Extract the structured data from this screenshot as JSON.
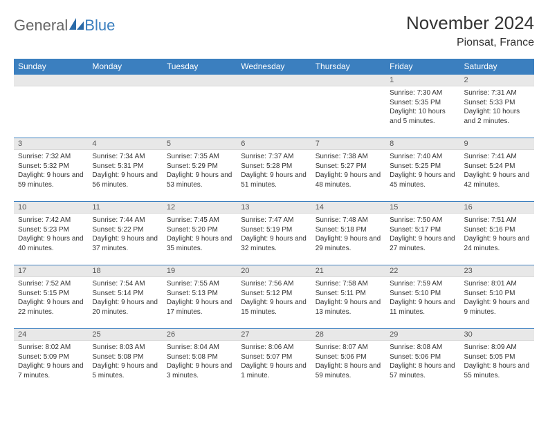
{
  "logo": {
    "part1": "General",
    "part2": "Blue"
  },
  "title": "November 2024",
  "location": "Pionsat, France",
  "header_color": "#3b7fbf",
  "daynum_bg": "#e8e8e8",
  "daynames": [
    "Sunday",
    "Monday",
    "Tuesday",
    "Wednesday",
    "Thursday",
    "Friday",
    "Saturday"
  ],
  "weeks": [
    [
      null,
      null,
      null,
      null,
      null,
      {
        "n": "1",
        "sr": "7:30 AM",
        "ss": "5:35 PM",
        "dl": "10 hours and 5 minutes."
      },
      {
        "n": "2",
        "sr": "7:31 AM",
        "ss": "5:33 PM",
        "dl": "10 hours and 2 minutes."
      }
    ],
    [
      {
        "n": "3",
        "sr": "7:32 AM",
        "ss": "5:32 PM",
        "dl": "9 hours and 59 minutes."
      },
      {
        "n": "4",
        "sr": "7:34 AM",
        "ss": "5:31 PM",
        "dl": "9 hours and 56 minutes."
      },
      {
        "n": "5",
        "sr": "7:35 AM",
        "ss": "5:29 PM",
        "dl": "9 hours and 53 minutes."
      },
      {
        "n": "6",
        "sr": "7:37 AM",
        "ss": "5:28 PM",
        "dl": "9 hours and 51 minutes."
      },
      {
        "n": "7",
        "sr": "7:38 AM",
        "ss": "5:27 PM",
        "dl": "9 hours and 48 minutes."
      },
      {
        "n": "8",
        "sr": "7:40 AM",
        "ss": "5:25 PM",
        "dl": "9 hours and 45 minutes."
      },
      {
        "n": "9",
        "sr": "7:41 AM",
        "ss": "5:24 PM",
        "dl": "9 hours and 42 minutes."
      }
    ],
    [
      {
        "n": "10",
        "sr": "7:42 AM",
        "ss": "5:23 PM",
        "dl": "9 hours and 40 minutes."
      },
      {
        "n": "11",
        "sr": "7:44 AM",
        "ss": "5:22 PM",
        "dl": "9 hours and 37 minutes."
      },
      {
        "n": "12",
        "sr": "7:45 AM",
        "ss": "5:20 PM",
        "dl": "9 hours and 35 minutes."
      },
      {
        "n": "13",
        "sr": "7:47 AM",
        "ss": "5:19 PM",
        "dl": "9 hours and 32 minutes."
      },
      {
        "n": "14",
        "sr": "7:48 AM",
        "ss": "5:18 PM",
        "dl": "9 hours and 29 minutes."
      },
      {
        "n": "15",
        "sr": "7:50 AM",
        "ss": "5:17 PM",
        "dl": "9 hours and 27 minutes."
      },
      {
        "n": "16",
        "sr": "7:51 AM",
        "ss": "5:16 PM",
        "dl": "9 hours and 24 minutes."
      }
    ],
    [
      {
        "n": "17",
        "sr": "7:52 AM",
        "ss": "5:15 PM",
        "dl": "9 hours and 22 minutes."
      },
      {
        "n": "18",
        "sr": "7:54 AM",
        "ss": "5:14 PM",
        "dl": "9 hours and 20 minutes."
      },
      {
        "n": "19",
        "sr": "7:55 AM",
        "ss": "5:13 PM",
        "dl": "9 hours and 17 minutes."
      },
      {
        "n": "20",
        "sr": "7:56 AM",
        "ss": "5:12 PM",
        "dl": "9 hours and 15 minutes."
      },
      {
        "n": "21",
        "sr": "7:58 AM",
        "ss": "5:11 PM",
        "dl": "9 hours and 13 minutes."
      },
      {
        "n": "22",
        "sr": "7:59 AM",
        "ss": "5:10 PM",
        "dl": "9 hours and 11 minutes."
      },
      {
        "n": "23",
        "sr": "8:01 AM",
        "ss": "5:10 PM",
        "dl": "9 hours and 9 minutes."
      }
    ],
    [
      {
        "n": "24",
        "sr": "8:02 AM",
        "ss": "5:09 PM",
        "dl": "9 hours and 7 minutes."
      },
      {
        "n": "25",
        "sr": "8:03 AM",
        "ss": "5:08 PM",
        "dl": "9 hours and 5 minutes."
      },
      {
        "n": "26",
        "sr": "8:04 AM",
        "ss": "5:08 PM",
        "dl": "9 hours and 3 minutes."
      },
      {
        "n": "27",
        "sr": "8:06 AM",
        "ss": "5:07 PM",
        "dl": "9 hours and 1 minute."
      },
      {
        "n": "28",
        "sr": "8:07 AM",
        "ss": "5:06 PM",
        "dl": "8 hours and 59 minutes."
      },
      {
        "n": "29",
        "sr": "8:08 AM",
        "ss": "5:06 PM",
        "dl": "8 hours and 57 minutes."
      },
      {
        "n": "30",
        "sr": "8:09 AM",
        "ss": "5:05 PM",
        "dl": "8 hours and 55 minutes."
      }
    ]
  ],
  "labels": {
    "sunrise": "Sunrise: ",
    "sunset": "Sunset: ",
    "daylight": "Daylight: "
  }
}
